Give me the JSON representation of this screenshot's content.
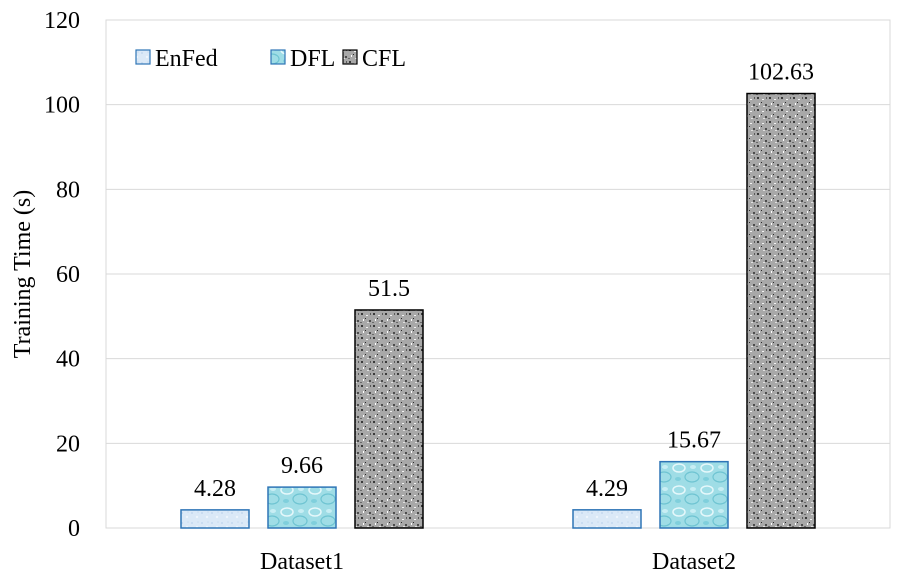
{
  "chart_data": {
    "type": "bar",
    "title": "",
    "xlabel": "",
    "ylabel": "Training Time (s)",
    "ylim": [
      0,
      120
    ],
    "yticks": [
      0,
      20,
      40,
      60,
      80,
      100,
      120
    ],
    "grid": true,
    "legend_position": "top-left",
    "categories": [
      "Dataset1",
      "Dataset2"
    ],
    "series": [
      {
        "name": "EnFed",
        "values": [
          4.28,
          4.29
        ],
        "labels": [
          "4.28",
          "4.29"
        ],
        "fill": "#dbe9f7",
        "stroke": "#2e75b6",
        "pattern": "light-texture"
      },
      {
        "name": "DFL",
        "values": [
          9.66,
          15.67
        ],
        "labels": [
          "9.66",
          "15.67"
        ],
        "fill": "#9fdde6",
        "stroke": "#2e75b6",
        "pattern": "water-droplets"
      },
      {
        "name": "CFL",
        "values": [
          51.5,
          102.63
        ],
        "labels": [
          "51.5",
          "102.63"
        ],
        "fill": "#a6a6a6",
        "stroke": "#000000",
        "pattern": "granite"
      }
    ]
  }
}
